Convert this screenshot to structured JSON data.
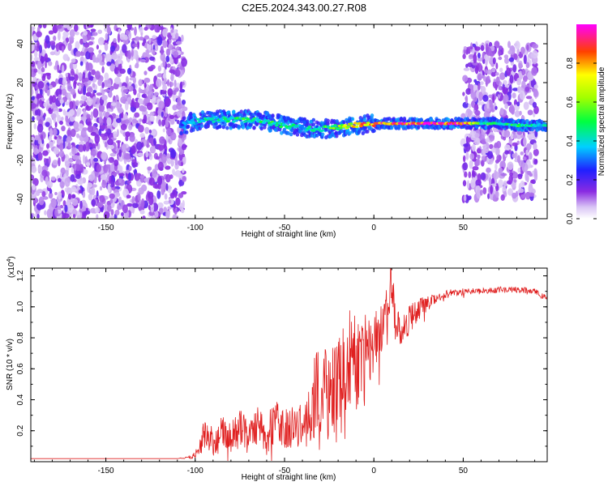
{
  "page_title": "C2E5.2024.343.00.27.R08",
  "chart_data": [
    {
      "type": "heatmap",
      "title": "C2E5.2024.343.00.27.R08",
      "xlabel": "Height of straight line (km)",
      "ylabel": "Frequency (Hz)",
      "xlim": [
        -192,
        97
      ],
      "ylim": [
        -50,
        50
      ],
      "x_ticks": [
        -150,
        -100,
        -50,
        0,
        50
      ],
      "x_tick_labels": [
        "-150",
        "-100",
        "-50",
        "0",
        "50"
      ],
      "y_ticks": [
        -40,
        -20,
        0,
        20,
        40
      ],
      "y_tick_labels": [
        "-40",
        "-20",
        "0",
        "20",
        "40"
      ],
      "colorbar": {
        "label": "Normalized spectral amplitude",
        "range": [
          0,
          1
        ],
        "ticks": [
          0.0,
          0.2,
          0.4,
          0.6,
          0.8
        ],
        "tick_labels": [
          "0.0",
          "0.2",
          "0.4",
          "0.6",
          "0.8"
        ],
        "colors": [
          "#ffffff",
          "#c8a8f0",
          "#8a2be2",
          "#0000ff",
          "#00ffff",
          "#00ff00",
          "#ffff00",
          "#ff0000",
          "#ff00ff"
        ]
      },
      "regions": [
        {
          "x": [
            -192,
            -106
          ],
          "freq": [
            -50,
            50
          ],
          "level": "low",
          "note_color": "#8a2be2"
        },
        {
          "x": [
            -106,
            97
          ],
          "freq": [
            -4,
            4
          ],
          "level": "mixed",
          "note_color": "#00c8ff"
        },
        {
          "x": [
            50,
            91
          ],
          "freq": [
            -40,
            40
          ],
          "level": "low",
          "note_color": "#8a2be2"
        }
      ],
      "ridge": {
        "x": [
          -108,
          -100,
          -90,
          -80,
          -70,
          -60,
          -50,
          -40,
          -30,
          -20,
          -10,
          0,
          10,
          20,
          30,
          40,
          50,
          60,
          70,
          80,
          90,
          97
        ],
        "freq": [
          -2,
          0,
          1,
          1,
          1,
          0,
          -2,
          -3,
          -4,
          -3,
          -2,
          -1,
          -1,
          -1,
          -1,
          -1,
          -1,
          -1,
          -1,
          -2,
          -2,
          -2
        ],
        "amplitude": [
          0.3,
          0.4,
          0.45,
          0.5,
          0.5,
          0.5,
          0.5,
          0.4,
          0.5,
          0.6,
          0.8,
          0.85,
          0.9,
          0.95,
          0.95,
          0.95,
          0.95,
          0.5,
          0.5,
          0.5,
          0.45,
          0.4
        ]
      }
    },
    {
      "type": "line",
      "xlabel": "Height of straight line (km)",
      "ylabel": "SNR (10 * v/v)",
      "y_multiplier": "(x10",
      "y_multiplier_exp": "4",
      "y_multiplier_close": ")",
      "xlim": [
        -192,
        97
      ],
      "ylim": [
        0,
        1.25
      ],
      "x_ticks": [
        -150,
        -100,
        -50,
        0,
        50
      ],
      "x_tick_labels": [
        "-150",
        "-100",
        "-50",
        "0",
        "50"
      ],
      "y_ticks": [
        0.2,
        0.4,
        0.6,
        0.8,
        1.0,
        1.2
      ],
      "y_tick_labels": [
        "0.2",
        "0.4",
        "0.6",
        "0.8",
        "1.0",
        "1.2"
      ],
      "color": "#e02020",
      "x": [
        -192,
        -160,
        -130,
        -110,
        -102,
        -98,
        -95,
        -90,
        -85,
        -80,
        -75,
        -70,
        -65,
        -60,
        -55,
        -50,
        -45,
        -40,
        -35,
        -32,
        -30,
        -28,
        -25,
        -20,
        -15,
        -12,
        -10,
        -5,
        0,
        5,
        8,
        10,
        12,
        15,
        20,
        25,
        30,
        35,
        40,
        50,
        60,
        70,
        80,
        90,
        97
      ],
      "y": [
        0.02,
        0.02,
        0.02,
        0.02,
        0.03,
        0.07,
        0.18,
        0.12,
        0.2,
        0.14,
        0.22,
        0.16,
        0.24,
        0.18,
        0.26,
        0.2,
        0.25,
        0.22,
        0.3,
        0.5,
        0.35,
        0.55,
        0.4,
        0.55,
        0.6,
        0.8,
        0.6,
        0.7,
        0.75,
        0.85,
        0.95,
        1.22,
        0.9,
        0.85,
        0.92,
        0.98,
        1.02,
        1.05,
        1.08,
        1.1,
        1.1,
        1.11,
        1.11,
        1.1,
        1.05
      ],
      "noise_amplitude": [
        0.0,
        0.0,
        0.0,
        0.0,
        0.01,
        0.04,
        0.1,
        0.1,
        0.1,
        0.12,
        0.12,
        0.12,
        0.12,
        0.14,
        0.14,
        0.14,
        0.15,
        0.15,
        0.2,
        0.3,
        0.25,
        0.3,
        0.3,
        0.3,
        0.3,
        0.3,
        0.3,
        0.25,
        0.2,
        0.2,
        0.25,
        0.25,
        0.15,
        0.1,
        0.1,
        0.08,
        0.05,
        0.03,
        0.03,
        0.02,
        0.02,
        0.02,
        0.02,
        0.02,
        0.02
      ]
    }
  ]
}
